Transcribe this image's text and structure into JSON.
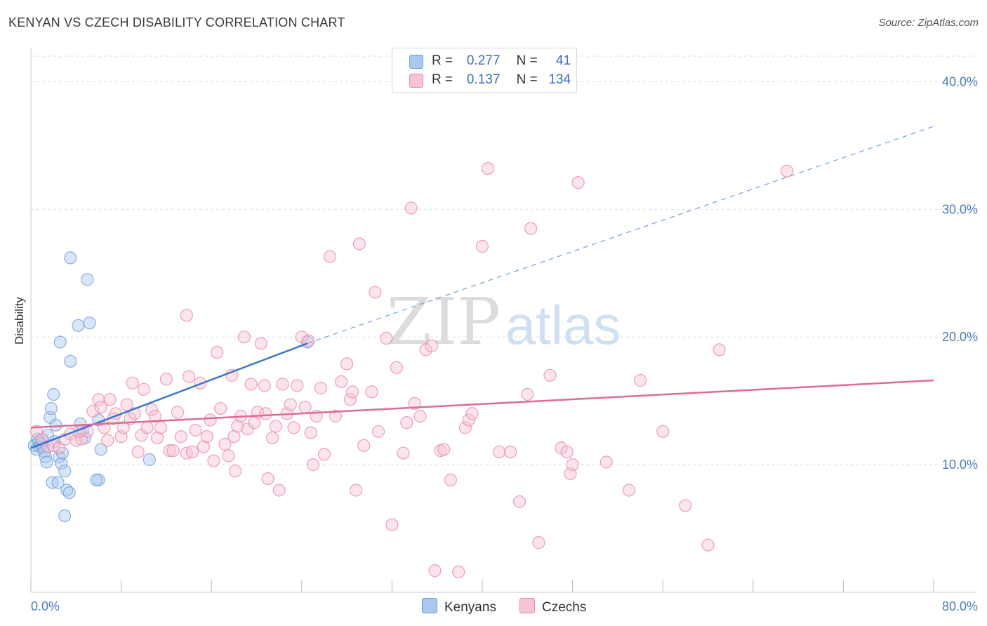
{
  "title": "KENYAN VS CZECH DISABILITY CORRELATION CHART",
  "source": "Source: ZipAtlas.com",
  "watermark": {
    "zip": "ZIP",
    "atlas": "atlas"
  },
  "legend": {
    "rows": [
      {
        "r_label": "R =",
        "r_value": "0.277",
        "n_label": "N =",
        "n_value": "41",
        "color": "#a9c8f0",
        "border": "#6f9fdc"
      },
      {
        "r_label": "R =",
        "r_value": "0.137",
        "n_label": "N =",
        "n_value": "134",
        "color": "#f8c3d3",
        "border": "#e88aa8"
      }
    ]
  },
  "bottom_legend": [
    {
      "label": "Kenyans",
      "color": "#a9c8f0",
      "border": "#6f9fdc"
    },
    {
      "label": "Czechs",
      "color": "#f8c3d3",
      "border": "#e88aa8"
    }
  ],
  "chart_data": {
    "type": "scatter",
    "title": "KENYAN VS CZECH DISABILITY CORRELATION CHART",
    "xlabel": "",
    "ylabel": "Disability",
    "xlim": [
      0,
      80
    ],
    "ylim": [
      0,
      42
    ],
    "x_tick_labels": [
      "0.0%",
      "80.0%"
    ],
    "y_ticks": [
      {
        "value": 10,
        "label": "10.0%"
      },
      {
        "value": 20,
        "label": "20.0%"
      },
      {
        "value": 30,
        "label": "30.0%"
      },
      {
        "value": 40,
        "label": "40.0%"
      }
    ],
    "grid": "horizontal dashed",
    "legend_position": "top-center",
    "series": [
      {
        "name": "Kenyans",
        "color": "#6f9fdc",
        "fill": "#a9c8f0",
        "trend": {
          "x": [
            0,
            24.5
          ],
          "y": [
            11.3,
            19.5
          ],
          "extended_to": [
            80,
            36.5
          ]
        },
        "points": [
          [
            0.3,
            11.5
          ],
          [
            0.5,
            11.2
          ],
          [
            0.6,
            12.0
          ],
          [
            0.7,
            11.8
          ],
          [
            0.8,
            11.4
          ],
          [
            0.9,
            11.6
          ],
          [
            1.0,
            11.9
          ],
          [
            1.1,
            11.3
          ],
          [
            1.2,
            11.0
          ],
          [
            1.3,
            10.6
          ],
          [
            1.4,
            10.2
          ],
          [
            1.5,
            12.3
          ],
          [
            1.7,
            13.7
          ],
          [
            1.8,
            14.4
          ],
          [
            1.9,
            8.6
          ],
          [
            2.0,
            15.5
          ],
          [
            2.2,
            13.1
          ],
          [
            2.4,
            8.6
          ],
          [
            2.5,
            10.6
          ],
          [
            2.6,
            19.6
          ],
          [
            2.7,
            10.1
          ],
          [
            2.8,
            10.9
          ],
          [
            3.0,
            9.5
          ],
          [
            3.2,
            8.0
          ],
          [
            3.4,
            7.8
          ],
          [
            3.5,
            18.1
          ],
          [
            3.0,
            6.0
          ],
          [
            4.2,
            20.9
          ],
          [
            4.4,
            13.2
          ],
          [
            4.6,
            12.7
          ],
          [
            4.8,
            12.1
          ],
          [
            5.0,
            24.5
          ],
          [
            5.2,
            21.1
          ],
          [
            6.0,
            8.8
          ],
          [
            6.2,
            11.2
          ],
          [
            6.0,
            13.5
          ],
          [
            3.5,
            26.2
          ],
          [
            10.5,
            10.4
          ],
          [
            24.5,
            19.6
          ],
          [
            5.8,
            8.8
          ],
          [
            2.1,
            11.8
          ]
        ]
      },
      {
        "name": "Czechs",
        "color": "#e88aa8",
        "fill": "#f8c3d3",
        "trend": {
          "x": [
            0,
            80
          ],
          "y": [
            12.9,
            16.6
          ]
        },
        "points": [
          [
            0.5,
            12.6
          ],
          [
            1.0,
            12.0
          ],
          [
            1.5,
            11.4
          ],
          [
            2.0,
            11.5
          ],
          [
            2.5,
            11.3
          ],
          [
            3.0,
            12.0
          ],
          [
            3.5,
            12.4
          ],
          [
            4.0,
            11.9
          ],
          [
            4.5,
            12.0
          ],
          [
            5.0,
            12.6
          ],
          [
            5.5,
            14.2
          ],
          [
            6.0,
            15.1
          ],
          [
            6.2,
            14.5
          ],
          [
            6.5,
            12.9
          ],
          [
            7.0,
            15.1
          ],
          [
            7.5,
            14.0
          ],
          [
            8.0,
            12.2
          ],
          [
            8.2,
            12.9
          ],
          [
            8.5,
            14.7
          ],
          [
            8.8,
            13.6
          ],
          [
            9.0,
            16.4
          ],
          [
            9.5,
            11.0
          ],
          [
            9.8,
            12.3
          ],
          [
            10.0,
            15.9
          ],
          [
            10.3,
            12.9
          ],
          [
            10.7,
            14.3
          ],
          [
            11.0,
            13.8
          ],
          [
            11.2,
            12.1
          ],
          [
            11.5,
            12.9
          ],
          [
            12.0,
            16.7
          ],
          [
            12.3,
            11.1
          ],
          [
            12.6,
            11.1
          ],
          [
            13.0,
            14.1
          ],
          [
            13.3,
            12.2
          ],
          [
            13.8,
            10.9
          ],
          [
            14.0,
            16.9
          ],
          [
            14.3,
            11.0
          ],
          [
            14.6,
            12.7
          ],
          [
            15.0,
            16.4
          ],
          [
            15.3,
            11.4
          ],
          [
            15.6,
            12.2
          ],
          [
            15.9,
            13.5
          ],
          [
            16.2,
            10.3
          ],
          [
            16.5,
            18.8
          ],
          [
            16.8,
            14.4
          ],
          [
            17.2,
            11.6
          ],
          [
            17.5,
            10.7
          ],
          [
            17.8,
            17.0
          ],
          [
            18.0,
            12.2
          ],
          [
            18.3,
            13.0
          ],
          [
            18.6,
            13.8
          ],
          [
            18.9,
            20.0
          ],
          [
            19.2,
            12.8
          ],
          [
            19.5,
            16.3
          ],
          [
            19.8,
            13.3
          ],
          [
            20.1,
            14.1
          ],
          [
            20.4,
            19.5
          ],
          [
            20.7,
            16.2
          ],
          [
            21.0,
            8.9
          ],
          [
            21.4,
            12.1
          ],
          [
            21.7,
            13.0
          ],
          [
            22.0,
            8.0
          ],
          [
            22.3,
            16.3
          ],
          [
            22.7,
            14.0
          ],
          [
            23.0,
            14.7
          ],
          [
            23.3,
            12.9
          ],
          [
            23.6,
            16.2
          ],
          [
            24.0,
            20.0
          ],
          [
            24.3,
            14.5
          ],
          [
            24.6,
            19.7
          ],
          [
            25.0,
            10.0
          ],
          [
            25.3,
            13.8
          ],
          [
            25.7,
            16.0
          ],
          [
            26.0,
            10.8
          ],
          [
            26.5,
            26.3
          ],
          [
            27.0,
            13.8
          ],
          [
            27.5,
            16.5
          ],
          [
            28.0,
            17.9
          ],
          [
            28.3,
            15.1
          ],
          [
            28.8,
            8.0
          ],
          [
            29.1,
            27.3
          ],
          [
            29.5,
            11.5
          ],
          [
            30.2,
            15.7
          ],
          [
            30.5,
            23.5
          ],
          [
            30.8,
            12.6
          ],
          [
            31.5,
            19.9
          ],
          [
            32.0,
            5.3
          ],
          [
            32.4,
            17.6
          ],
          [
            33.0,
            10.9
          ],
          [
            33.3,
            13.3
          ],
          [
            33.7,
            30.1
          ],
          [
            34.0,
            14.8
          ],
          [
            34.5,
            13.8
          ],
          [
            35.0,
            19.0
          ],
          [
            35.5,
            19.3
          ],
          [
            35.8,
            1.7
          ],
          [
            36.3,
            11.1
          ],
          [
            36.6,
            11.2
          ],
          [
            37.2,
            8.8
          ],
          [
            37.9,
            1.6
          ],
          [
            38.5,
            12.9
          ],
          [
            38.8,
            13.5
          ],
          [
            39.1,
            14.0
          ],
          [
            40.0,
            27.1
          ],
          [
            40.5,
            33.2
          ],
          [
            41.5,
            11.0
          ],
          [
            42.5,
            11.0
          ],
          [
            43.3,
            7.1
          ],
          [
            44.0,
            15.5
          ],
          [
            44.3,
            28.5
          ],
          [
            45.0,
            3.9
          ],
          [
            46.0,
            17.0
          ],
          [
            47.0,
            11.3
          ],
          [
            47.5,
            11.0
          ],
          [
            47.8,
            9.3
          ],
          [
            48.0,
            10.0
          ],
          [
            48.5,
            32.1
          ],
          [
            51.0,
            10.2
          ],
          [
            53.0,
            8.0
          ],
          [
            54.0,
            16.6
          ],
          [
            56.0,
            12.6
          ],
          [
            58.0,
            6.8
          ],
          [
            60.0,
            3.7
          ],
          [
            61.0,
            19.0
          ],
          [
            67.0,
            33.0
          ],
          [
            28.5,
            15.7
          ],
          [
            20.8,
            14.0
          ],
          [
            24.8,
            12.5
          ],
          [
            13.8,
            21.7
          ],
          [
            18.1,
            9.5
          ],
          [
            6.8,
            11.9
          ],
          [
            7.3,
            13.6
          ],
          [
            9.2,
            14.0
          ],
          [
            4.3,
            12.6
          ]
        ]
      }
    ]
  }
}
